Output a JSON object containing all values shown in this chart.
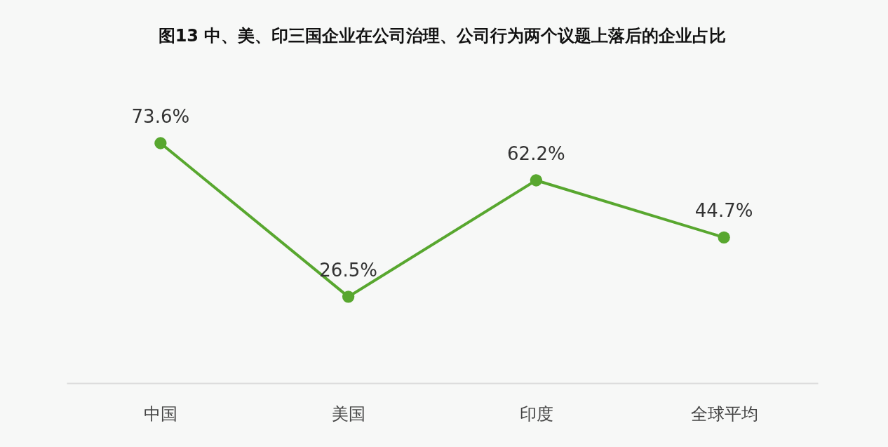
{
  "chart_data": {
    "type": "line",
    "title": "图13  中、美、印三国企业在公司治理、公司行为两个议题上落后的企业占比",
    "categories": [
      "中国",
      "美国",
      "印度",
      "全球平均"
    ],
    "series": [
      {
        "color": "#58a72f",
        "values": [
          73.6,
          26.5,
          62.2,
          44.7
        ],
        "value_labels": [
          "73.6%",
          "26.5%",
          "62.2%",
          "44.7%"
        ]
      }
    ],
    "tick_labels": "x",
    "grid": false,
    "legend": false,
    "marker": "circle",
    "line_style": "solid"
  }
}
